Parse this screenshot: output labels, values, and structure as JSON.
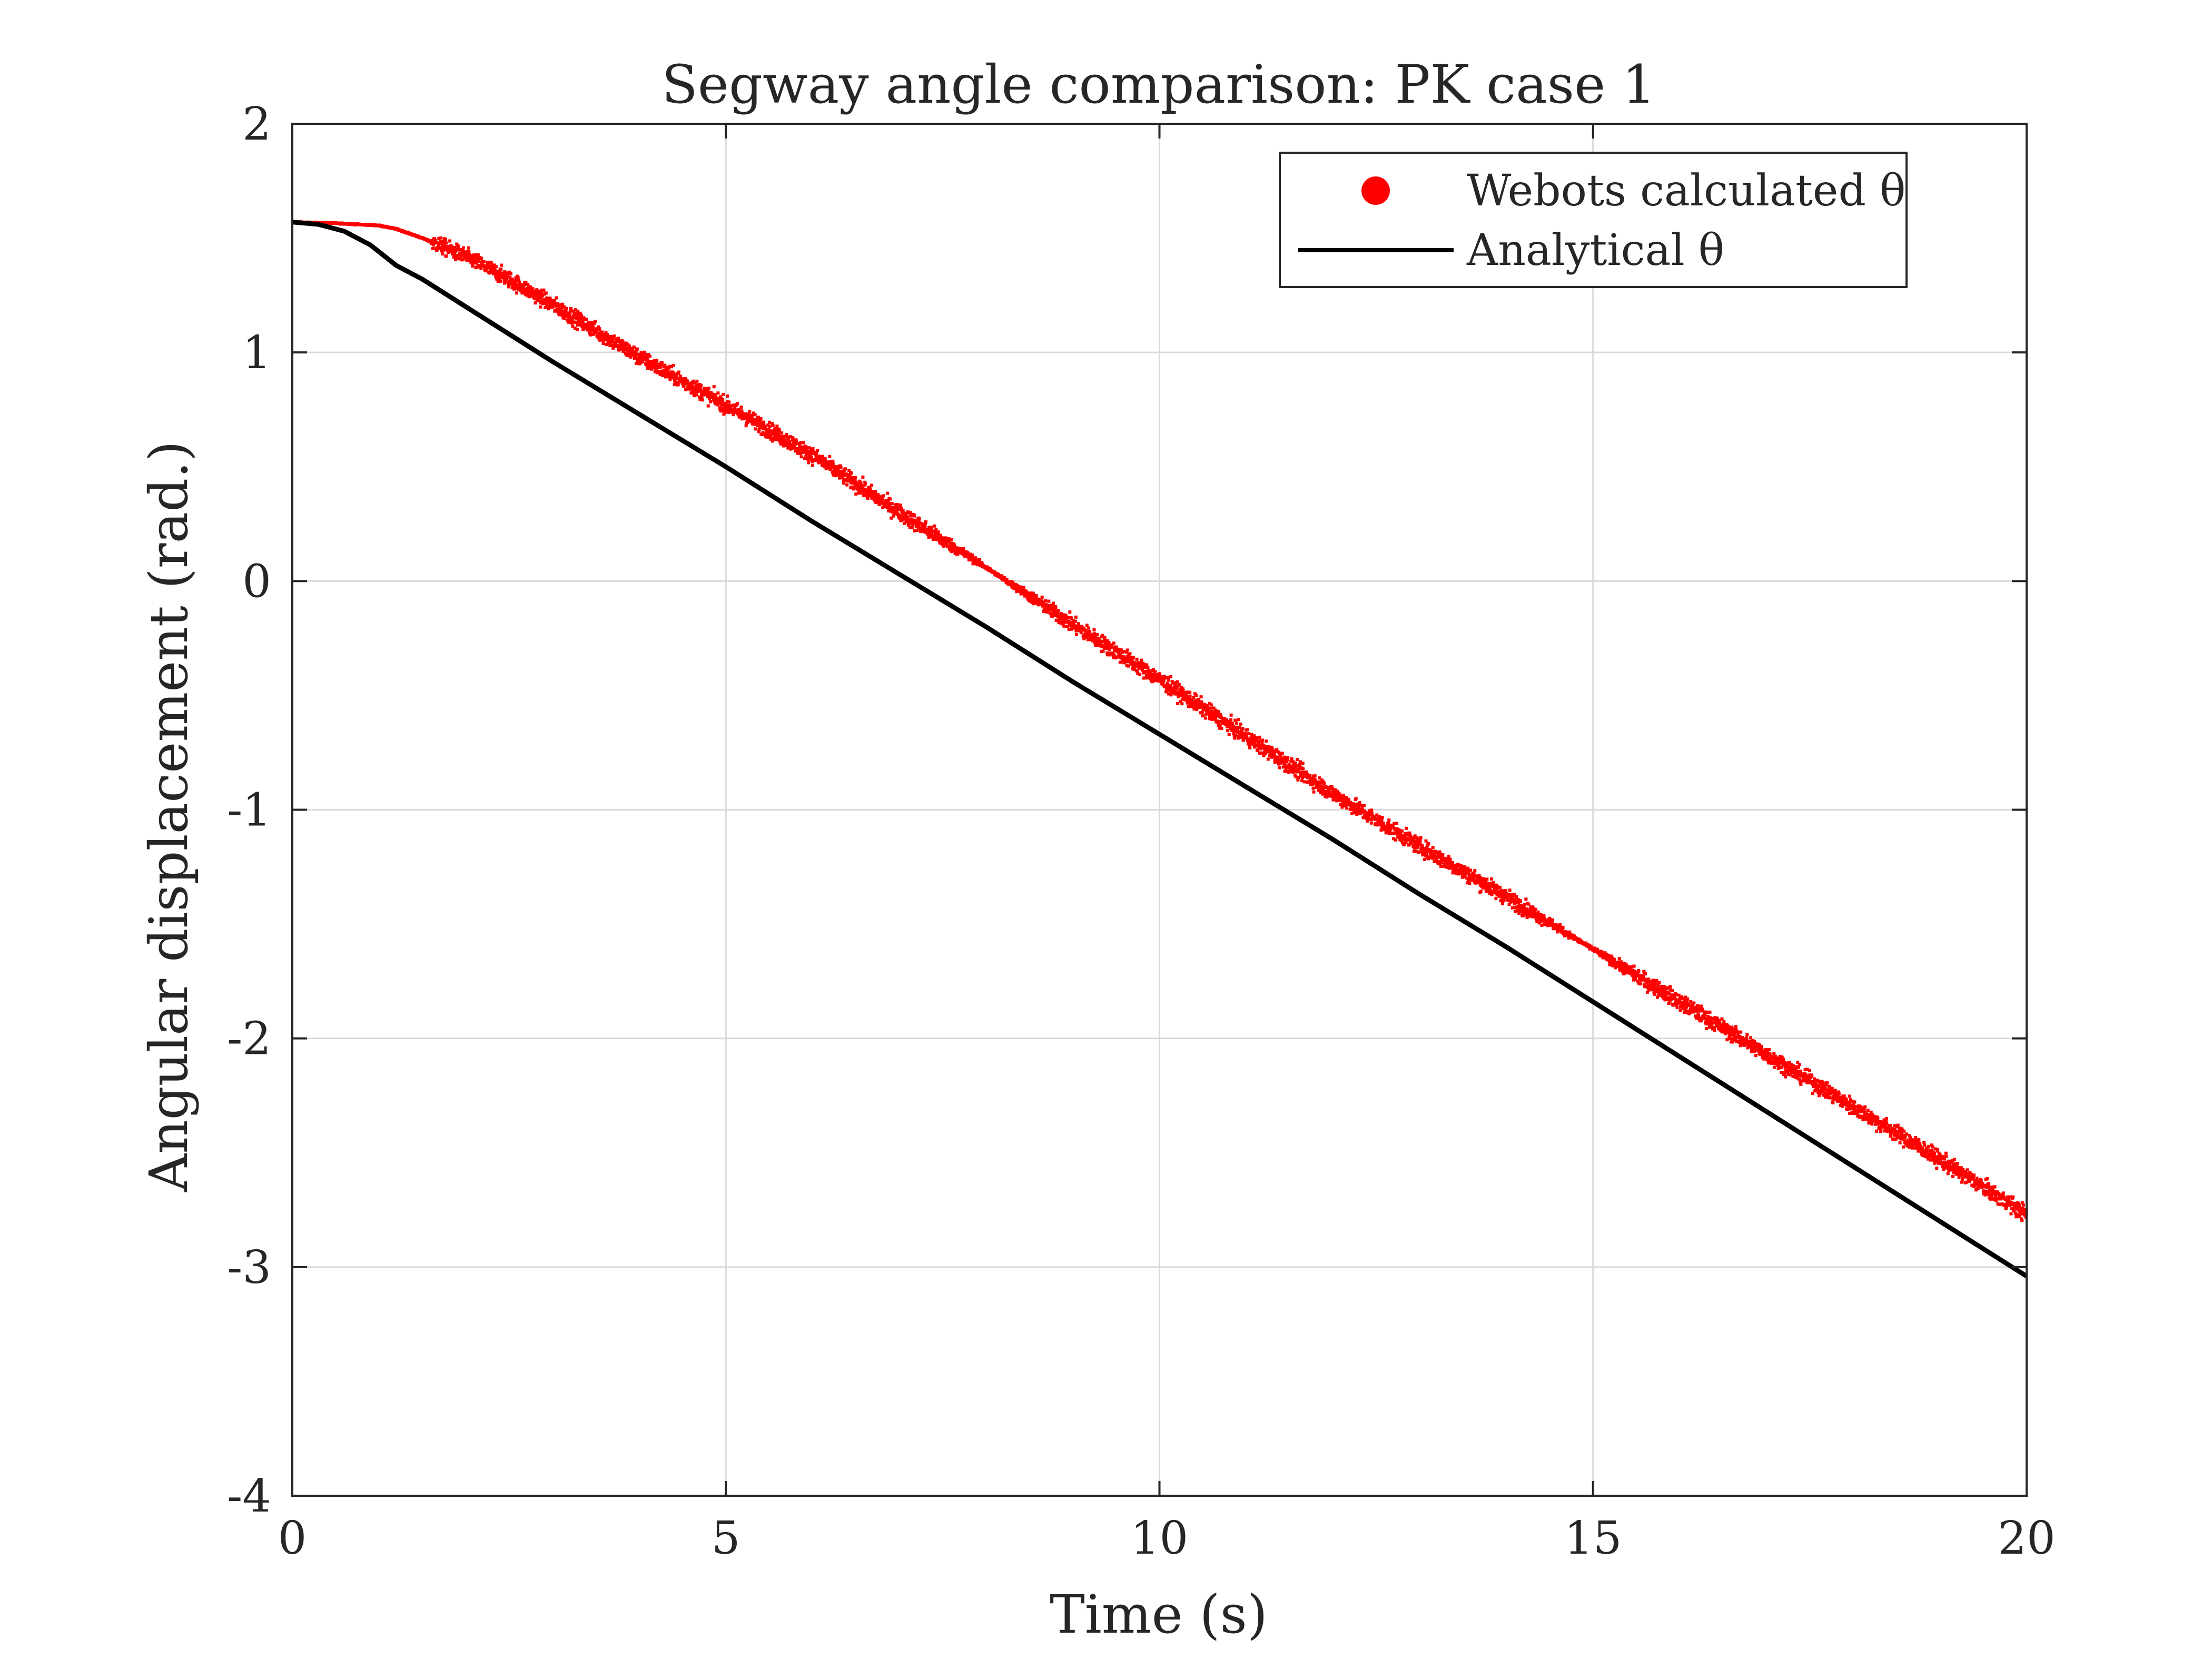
{
  "chart_data": {
    "type": "line",
    "title": "Segway angle comparison: PK case 1",
    "xlabel": "Time (s)",
    "ylabel": "Angular displacement (rad.)",
    "xlim": [
      0,
      20
    ],
    "ylim": [
      -4,
      2
    ],
    "x_ticks": [
      "0",
      "5",
      "10",
      "15",
      "20"
    ],
    "y_ticks": [
      "2",
      "1",
      "0",
      "-1",
      "-2",
      "-3",
      "-4"
    ],
    "grid": true,
    "legend_position": "top-right",
    "series": [
      {
        "name": "Webots calculated θ",
        "style": "scatter",
        "color": "#ff0000",
        "x": [
          0,
          0.5,
          1.0,
          1.2,
          1.5,
          2.0,
          2.5,
          3.0,
          4.0,
          5.0,
          6.0,
          7.0,
          8.0,
          9.0,
          10.0,
          11.0,
          12.0,
          13.0,
          14.0,
          15.0,
          16.0,
          17.0,
          18.0,
          19.0,
          20.0
        ],
        "y": [
          1.57,
          1.565,
          1.555,
          1.54,
          1.5,
          1.42,
          1.32,
          1.21,
          0.98,
          0.77,
          0.55,
          0.3,
          0.06,
          -0.19,
          -0.43,
          -0.68,
          -0.93,
          -1.16,
          -1.38,
          -1.61,
          -1.84,
          -2.07,
          -2.3,
          -2.53,
          -2.77
        ]
      },
      {
        "name": "Analytical θ",
        "style": "line",
        "color": "#000000",
        "x": [
          0,
          0.3,
          0.6,
          0.9,
          1.2,
          1.5,
          2.0,
          3.0,
          4.0,
          5.0,
          6.0,
          7.0,
          8.0,
          9.0,
          10.0,
          11.0,
          12.0,
          13.0,
          14.0,
          15.0,
          16.0,
          17.0,
          18.0,
          19.0,
          20.0
        ],
        "y": [
          1.57,
          1.56,
          1.53,
          1.47,
          1.38,
          1.32,
          1.2,
          0.96,
          0.73,
          0.5,
          0.26,
          0.03,
          -0.2,
          -0.44,
          -0.67,
          -0.9,
          -1.13,
          -1.37,
          -1.6,
          -1.84,
          -2.08,
          -2.32,
          -2.56,
          -2.8,
          -3.04
        ]
      }
    ]
  },
  "colors": {
    "webots": "#ff0000",
    "analytical": "#000000",
    "axis": "#262626",
    "grid": "#d9d9d9"
  }
}
